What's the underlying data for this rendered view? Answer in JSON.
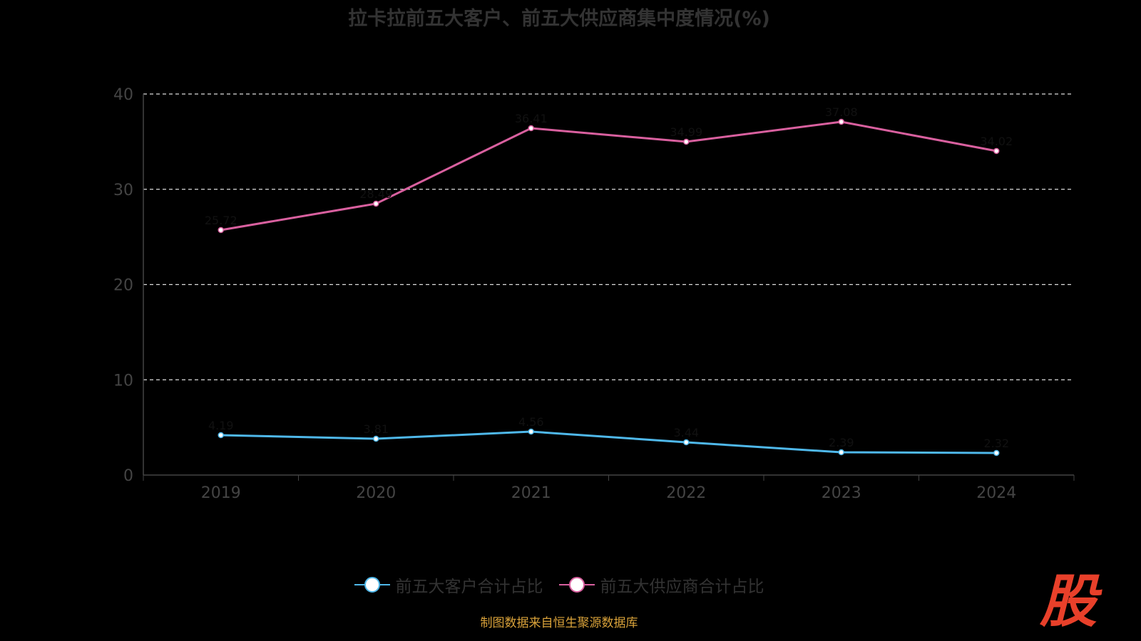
{
  "chart_data": {
    "type": "line",
    "title": "拉卡拉前五大客户、前五大供应商集中度情况(%)",
    "categories": [
      "2019",
      "2020",
      "2021",
      "2022",
      "2023",
      "2024"
    ],
    "yticks": [
      "0",
      "10",
      "20",
      "30",
      "40"
    ],
    "ylim": [
      0,
      40
    ],
    "grid": true,
    "legend_position": "bottom",
    "series": [
      {
        "name": "前五大客户合计占比",
        "color": "#4fb8ea",
        "values": [
          4.19,
          3.81,
          4.56,
          3.44,
          2.39,
          2.32
        ]
      },
      {
        "name": "前五大供应商合计占比",
        "color": "#d9609f",
        "values": [
          25.72,
          28.49,
          36.41,
          34.99,
          37.08,
          34.02
        ]
      }
    ]
  },
  "footer": {
    "source": "制图数据来自恒生聚源数据库",
    "logo": "股"
  }
}
